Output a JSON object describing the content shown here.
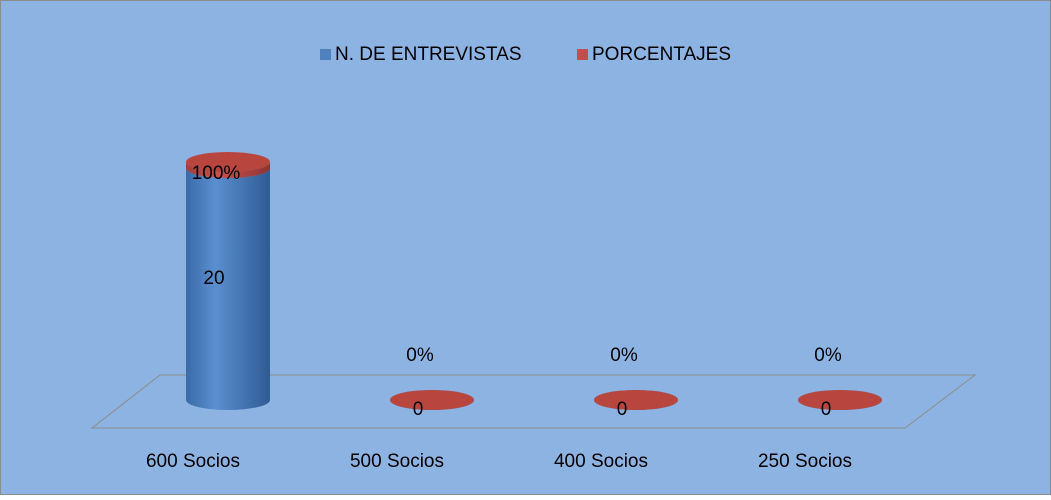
{
  "chart_data": {
    "type": "bar3d",
    "categories": [
      "600 Socios",
      "500 Socios",
      "400 Socios",
      "250 Socios"
    ],
    "series": [
      {
        "name": "N. DE ENTREVISTAS",
        "color": "#4f81bd",
        "values": [
          20,
          0,
          0,
          0
        ]
      },
      {
        "name": "PORCENTAJES",
        "color": "#c0504d",
        "values": [
          100,
          0,
          0,
          0
        ],
        "value_labels": [
          "100%",
          "0%",
          "0%",
          "0%"
        ]
      }
    ]
  }
}
